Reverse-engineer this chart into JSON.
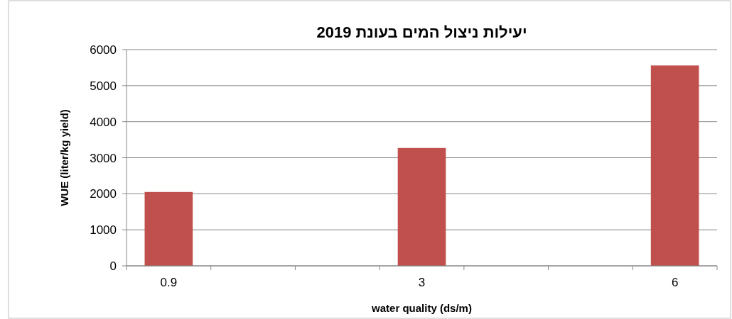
{
  "chart_data": {
    "type": "bar",
    "title": "יעילות ניצול המים בעונת 2019",
    "xlabel": "water quality (ds/m)",
    "ylabel": "WUE (liter/kg yield)",
    "categories": [
      "0.9",
      null,
      null,
      "3",
      null,
      null,
      "6"
    ],
    "values": [
      2050,
      null,
      null,
      3270,
      null,
      null,
      5560
    ],
    "color": "#c0504d",
    "ylim": [
      0,
      6000
    ],
    "yticks": [
      0,
      1000,
      2000,
      3000,
      4000,
      5000,
      6000
    ],
    "grid": "y"
  }
}
